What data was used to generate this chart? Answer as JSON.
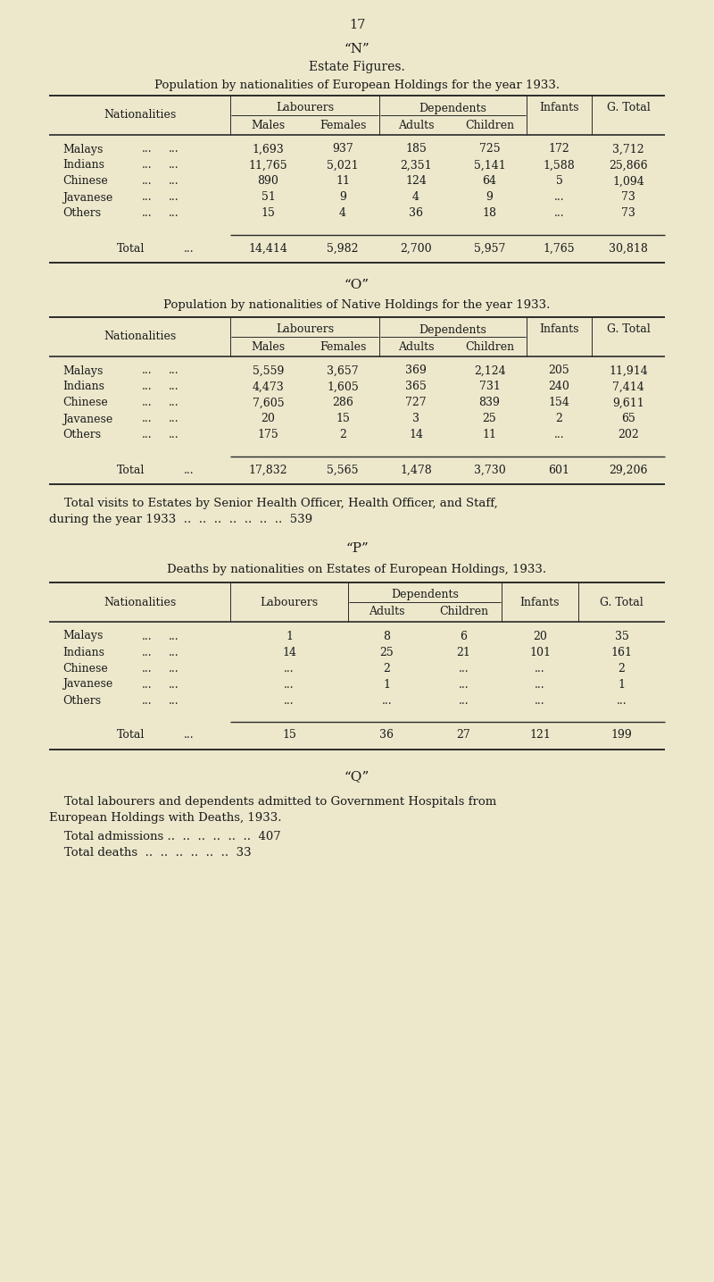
{
  "bg_color": "#ede8cc",
  "page_number": "17",
  "section_n": "“N”",
  "title1": "Estate Figures.",
  "subtitle1": "Population by nationalities of European Holdings for the year 1933.",
  "table1_rows": [
    [
      "Malays",
      "...",
      "...",
      "1,693",
      "937",
      "185",
      "725",
      "172",
      "3,712"
    ],
    [
      "Indians",
      "...",
      "...",
      "11,765",
      "5,021",
      "2,351",
      "5,141",
      "1,588",
      "25,866"
    ],
    [
      "Chinese",
      "...",
      "...",
      "890",
      "11",
      "124",
      "64",
      "5",
      "1,094"
    ],
    [
      "Javanese",
      "...",
      "...",
      "51",
      "9",
      "4",
      "9",
      "...",
      "73"
    ],
    [
      "Others",
      "...",
      "...",
      "15",
      "4",
      "36",
      "18",
      "...",
      "73"
    ]
  ],
  "table1_total": [
    "",
    "Total",
    "...",
    "14,414",
    "5,982",
    "2,700",
    "5,957",
    "1,765",
    "30,818"
  ],
  "section_o": "“O”",
  "subtitle2": "Population by nationalities of Native Holdings for the year 1933.",
  "table2_rows": [
    [
      "Malays",
      "...",
      "...",
      "5,559",
      "3,657",
      "369",
      "2,124",
      "205",
      "11,914"
    ],
    [
      "Indians",
      "...",
      "...",
      "4,473",
      "1,605",
      "365",
      "731",
      "240",
      "7,414"
    ],
    [
      "Chinese",
      "...",
      "...",
      "7,605",
      "286",
      "727",
      "839",
      "154",
      "9,611"
    ],
    [
      "Javanese",
      "...",
      "...",
      "20",
      "15",
      "3",
      "25",
      "2",
      "65"
    ],
    [
      "Others",
      "...",
      "...",
      "175",
      "2",
      "14",
      "11",
      "...",
      "202"
    ]
  ],
  "table2_total": [
    "",
    "Total",
    "...",
    "17,832",
    "5,565",
    "1,478",
    "3,730",
    "601",
    "29,206"
  ],
  "visits_line1": "    Total visits to Estates by Senior Health Officer, Health Officer, and Staff,",
  "visits_line2": "during the year 1933  ..  ..  ..  ..  ..  ..  ..  539",
  "section_p": "“P”",
  "subtitle3": "Deaths by nationalities on Estates of European Holdings, 1933.",
  "table3_rows": [
    [
      "Malays",
      "...",
      "...",
      "1",
      "8",
      "6",
      "20",
      "35"
    ],
    [
      "Indians",
      "...",
      "...",
      "14",
      "25",
      "21",
      "101",
      "161"
    ],
    [
      "Chinese",
      "...",
      "...",
      "...",
      "2",
      "...",
      "...",
      "2"
    ],
    [
      "Javanese",
      "...",
      "...",
      "...",
      "1",
      "...",
      "...",
      "1"
    ],
    [
      "Others",
      "...",
      "...",
      "...",
      "...",
      "...",
      "...",
      "..."
    ]
  ],
  "table3_total": [
    "",
    "Total",
    "...",
    "15",
    "36",
    "27",
    "121",
    "199"
  ],
  "section_q": "“Q”",
  "final_line1": "    Total labourers and dependents admitted to Government Hospitals from",
  "final_line2": "European Holdings with Deaths, 1933.",
  "final_line3": "    Total admissions ..  ..  ..  ..  ..  ..  407",
  "final_line4": "    Total deaths  ..  ..  ..  ..  ..  ..  33"
}
